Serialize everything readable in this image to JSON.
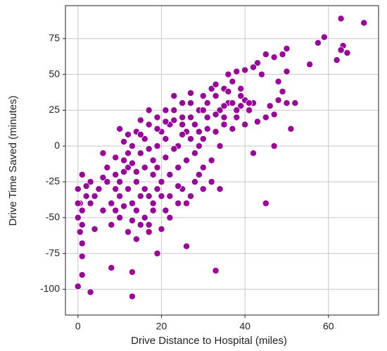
{
  "chart_data": {
    "type": "scatter",
    "xlabel": "Drive Distance to Hospital (miles)",
    "ylabel": "Drive Time Saved (minutes)",
    "color": "#990099",
    "grid": true,
    "xlim": [
      -3,
      72
    ],
    "ylim": [
      -118,
      98
    ],
    "xticks": [
      0,
      20,
      40,
      60
    ],
    "yticks": [
      -100,
      -75,
      -50,
      -25,
      0,
      25,
      50,
      75
    ],
    "x": [
      63,
      68.5,
      59,
      57.5,
      63.5,
      64.5,
      63,
      62,
      55.5,
      50,
      49,
      50,
      47,
      45,
      43,
      44,
      42,
      40,
      38,
      36,
      48,
      49,
      48,
      50,
      46,
      42,
      40,
      39,
      52,
      51,
      47,
      43,
      45,
      47,
      42,
      45,
      33,
      26,
      19,
      13,
      13,
      8,
      3,
      0,
      1,
      1,
      0.5,
      1,
      4,
      0,
      1,
      0.5,
      0,
      1,
      2,
      3,
      4,
      6,
      7,
      9,
      10,
      11,
      12,
      13,
      14,
      15,
      16,
      17,
      18,
      19,
      20,
      21,
      22,
      24,
      25,
      27,
      29,
      30,
      32,
      34,
      8,
      10,
      12,
      14,
      17,
      9,
      11,
      13,
      14,
      15,
      16,
      17,
      18,
      19,
      20,
      21,
      22,
      23,
      24,
      25,
      26,
      27,
      28,
      29,
      30,
      31,
      32,
      33,
      34,
      35,
      36,
      37,
      38,
      39,
      40,
      41,
      30,
      28,
      26,
      24,
      22,
      20,
      18,
      16,
      14,
      12,
      10,
      12,
      15,
      17,
      19,
      21,
      23,
      25,
      27,
      29,
      31,
      33,
      35,
      37,
      34,
      32,
      30,
      28,
      26,
      24,
      22,
      20,
      18,
      16,
      14,
      12,
      10,
      8,
      6,
      5,
      3,
      2,
      0,
      1,
      6,
      7,
      9,
      11,
      13,
      15,
      17,
      19,
      21,
      23,
      25,
      27,
      29,
      31,
      33,
      35,
      37,
      39,
      41,
      36,
      38,
      33,
      35,
      30,
      27,
      25,
      23,
      21,
      19,
      17,
      15,
      13,
      11,
      9
    ],
    "y": [
      89,
      86,
      76,
      72,
      70,
      65,
      67,
      60,
      57,
      68,
      64,
      52,
      62,
      64,
      58,
      50,
      55,
      53,
      52,
      50,
      45,
      38,
      32,
      30,
      28,
      30,
      32,
      35,
      30,
      12,
      22,
      17,
      20,
      0,
      -5,
      -40,
      -87,
      -70,
      -75,
      -88,
      -105,
      -85,
      -102,
      -98,
      -90,
      -68,
      -60,
      -77,
      -58,
      -50,
      -45,
      -40,
      -30,
      -20,
      -35,
      -25,
      -35,
      -22,
      -15,
      -20,
      -25,
      -18,
      -30,
      -40,
      -45,
      -35,
      -50,
      -55,
      -40,
      -30,
      -58,
      -45,
      -50,
      -40,
      -30,
      -35,
      -20,
      -30,
      -25,
      -30,
      -55,
      -50,
      -60,
      -65,
      -60,
      -30,
      -10,
      0,
      10,
      -5,
      5,
      15,
      -10,
      0,
      10,
      5,
      15,
      25,
      0,
      20,
      10,
      30,
      15,
      25,
      35,
      20,
      40,
      10,
      25,
      15,
      30,
      45,
      20,
      40,
      15,
      25,
      5,
      -5,
      -10,
      -15,
      -20,
      -25,
      -20,
      -15,
      -25,
      -5,
      12,
      8,
      18,
      25,
      20,
      25,
      35,
      30,
      20,
      10,
      30,
      35,
      40,
      30,
      0,
      -10,
      -15,
      -25,
      -40,
      -28,
      -35,
      -35,
      -45,
      -30,
      -18,
      -15,
      -35,
      -40,
      -45,
      -30,
      -40,
      -28,
      -40,
      -55,
      -5,
      -25,
      -8,
      3,
      -12,
      8,
      -2,
      12,
      -8,
      -2,
      8,
      5,
      0,
      12,
      22,
      28,
      12,
      28,
      30,
      38,
      25,
      43,
      20,
      25,
      37,
      15,
      18,
      17,
      -15,
      -35,
      -55,
      -52,
      -42,
      -45
    ]
  }
}
